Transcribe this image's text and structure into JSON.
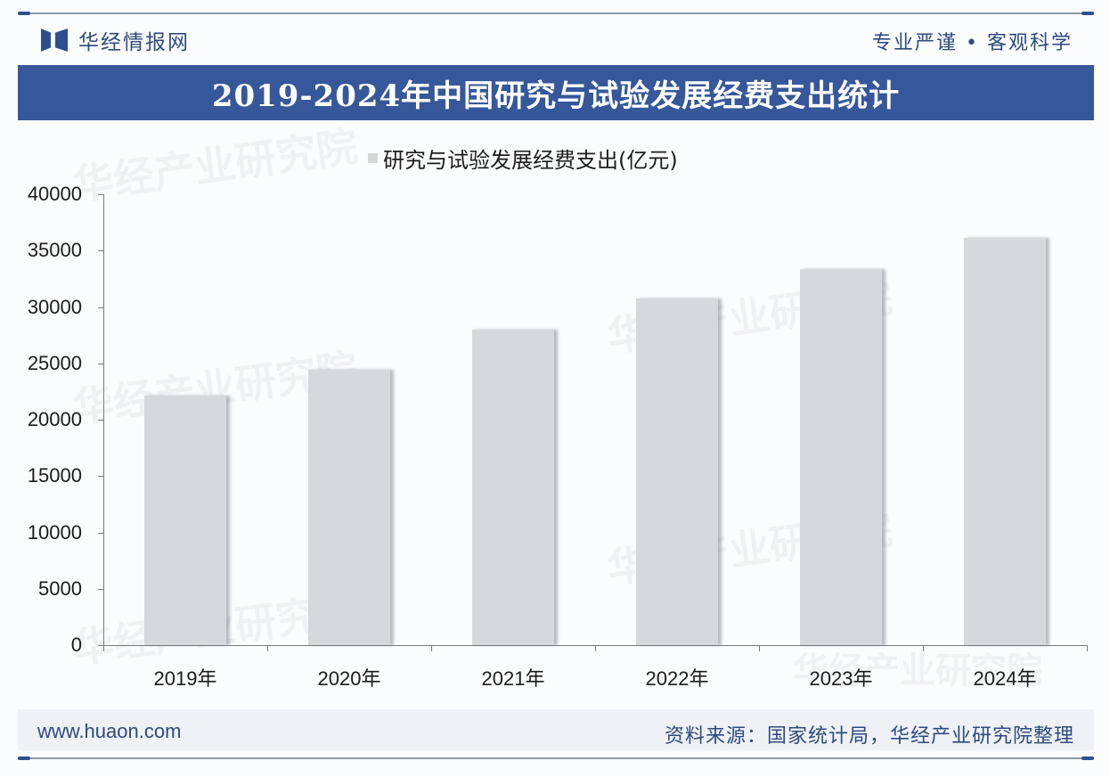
{
  "header": {
    "brand_name": "华经情报网",
    "slogan": "专业严谨 • 客观科学",
    "title": "2019-2024年中国研究与试验发展经费支出统计"
  },
  "legend": {
    "label": "研究与试验发展经费支出(亿元)",
    "swatch_color": "#d4d6da"
  },
  "watermarks": [
    "华经产业研究院",
    "华经产业研究院",
    "www.huaon.com"
  ],
  "footer": {
    "url": "www.huaon.com",
    "source": "资料来源：国家统计局，华经产业研究院整理"
  },
  "colors": {
    "banner": "#36579a",
    "accent": "#2e4f8f",
    "bar": "#d6d8dc",
    "text_dark": "#1c1c1c",
    "footer_text": "#2e4a7e"
  },
  "chart_data": {
    "type": "bar",
    "title": "2019-2024年中国研究与试验发展经费支出统计",
    "categories": [
      "2019年",
      "2020年",
      "2021年",
      "2022年",
      "2023年",
      "2024年"
    ],
    "series": [
      {
        "name": "研究与试验发展经费支出(亿元)",
        "values": [
          22144,
          24393,
          27956,
          30783,
          33357,
          36130
        ]
      }
    ],
    "xlabel": "",
    "ylabel": "",
    "ylim": [
      0,
      40000
    ],
    "yticks": [
      0,
      5000,
      10000,
      15000,
      20000,
      25000,
      30000,
      35000,
      40000
    ],
    "ytick_labels": [
      "0",
      "5000",
      "10000",
      "15000",
      "20000",
      "25000",
      "30000",
      "35000",
      "40000"
    ],
    "grid": false,
    "legend_position": "top"
  }
}
